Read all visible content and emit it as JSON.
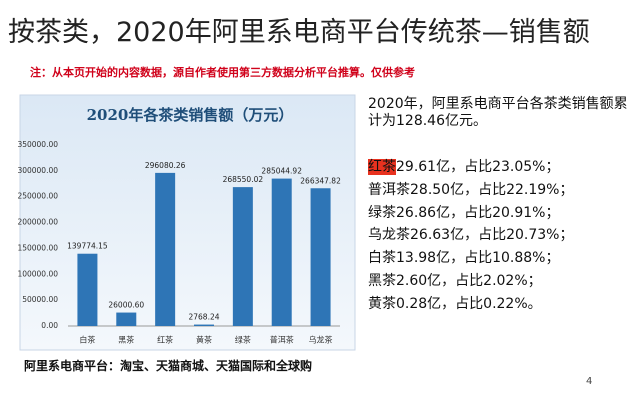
{
  "title": "按茶类，2020年阿里系电商平台传统茶—销售额",
  "note": "注：从本页开始的内容数据，源自作者使用第三方数据分析平台推算。仅供参考",
  "summary": "2020年，阿里系电商平台各茶类销售额累计为128.46亿元。",
  "items": [
    {
      "name": "红茶",
      "text": "29.61亿，占比23.05%；"
    },
    {
      "name": "普洱茶",
      "text": "28.50亿，占比22.19%；"
    },
    {
      "name": "绿茶",
      "text": "26.86亿，占比20.91%；"
    },
    {
      "name": "乌龙茶",
      "text": "26.63亿，占比20.73%；"
    },
    {
      "name": "白茶",
      "text": "13.98亿，占比10.88%；"
    },
    {
      "name": "黑茶",
      "text": "2.60亿，占比2.02%；"
    },
    {
      "name": "黄茶",
      "text": "0.28亿，占比0.22%。"
    }
  ],
  "footer": "阿里系电商平台：淘宝、天猫商城、天猫国际和全球购",
  "page_number": "4",
  "chart_data": {
    "type": "bar",
    "title": "2020年各茶类销售额（万元）",
    "categories": [
      "白茶",
      "黑茶",
      "红茶",
      "黄茶",
      "绿茶",
      "普洱茶",
      "乌龙茶"
    ],
    "values": [
      139774.15,
      26000.6,
      296080.26,
      2768.24,
      268550.02,
      285044.92,
      266347.82
    ],
    "value_labels": [
      "139774.15",
      "26000.60",
      "296080.26",
      "2768.24",
      "268550.02",
      "285044.92",
      "266347.82"
    ],
    "color": "#2e75b6",
    "ylim": [
      0,
      350000
    ],
    "yticks": [
      {
        "value": 0,
        "label": "0.00"
      },
      {
        "value": 50000,
        "label": "50000.00"
      },
      {
        "value": 100000,
        "label": "100000.00"
      },
      {
        "value": 150000,
        "label": "150000.00"
      },
      {
        "value": 200000,
        "label": "200000.00"
      },
      {
        "value": 250000,
        "label": "250000.00"
      },
      {
        "value": 300000,
        "label": "300000.00"
      },
      {
        "value": 350000,
        "label": "350000.00"
      }
    ],
    "grid": false
  }
}
